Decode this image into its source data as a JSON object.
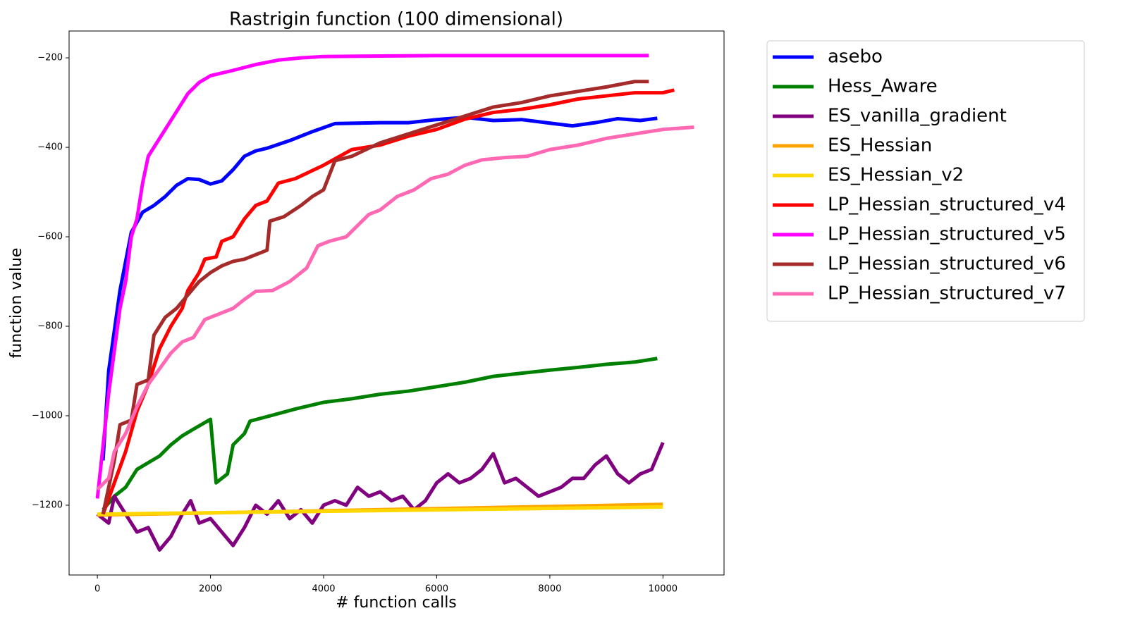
{
  "chart_data": {
    "type": "line",
    "title": "Rastrigin function (100 dimensional)",
    "x_label": "# function calls",
    "y_label": "function value",
    "xlim": [
      -500,
      11080
    ],
    "ylim": [
      -1356,
      -140
    ],
    "xticks": [
      0,
      2000,
      4000,
      6000,
      8000,
      10000
    ],
    "yticks": [
      {
        "value": -1200,
        "label": "−1200"
      },
      {
        "value": -1000,
        "label": "−1000"
      },
      {
        "value": -800,
        "label": "−800"
      },
      {
        "value": -600,
        "label": "−600"
      },
      {
        "value": -400,
        "label": "−400"
      },
      {
        "value": -200,
        "label": "−200"
      }
    ],
    "grid": false,
    "series": [
      {
        "name": "asebo",
        "color": "#0000ff",
        "x": [
          100,
          200,
          400,
          600,
          800,
          1000,
          1200,
          1400,
          1600,
          1800,
          2000,
          2200,
          2400,
          2600,
          2800,
          3000,
          3400,
          3800,
          4200,
          4600,
          5000,
          5500,
          6000,
          6500,
          7000,
          7500,
          8000,
          8400,
          8800,
          9200,
          9600,
          9900
        ],
        "values": [
          -1100,
          -900,
          -720,
          -590,
          -545,
          -530,
          -510,
          -485,
          -470,
          -472,
          -482,
          -475,
          -450,
          -420,
          -408,
          -402,
          -385,
          -365,
          -347,
          -346,
          -345,
          -345,
          -338,
          -333,
          -340,
          -338,
          -346,
          -352,
          -345,
          -336,
          -340,
          -335
        ]
      },
      {
        "name": "Hess_Aware",
        "color": "#008000",
        "x": [
          100,
          300,
          500,
          700,
          900,
          1100,
          1300,
          1500,
          1700,
          2000,
          2100,
          2300,
          2400,
          2600,
          2700,
          3000,
          3500,
          4000,
          4500,
          5000,
          5500,
          6000,
          6500,
          7000,
          7500,
          8000,
          8500,
          9000,
          9500,
          9900
        ],
        "values": [
          -1210,
          -1180,
          -1160,
          -1120,
          -1105,
          -1090,
          -1065,
          -1045,
          -1030,
          -1008,
          -1150,
          -1130,
          -1065,
          -1040,
          -1012,
          -1002,
          -985,
          -970,
          -962,
          -952,
          -945,
          -935,
          -925,
          -912,
          -905,
          -898,
          -892,
          -885,
          -880,
          -872
        ]
      },
      {
        "name": "ES_vanilla_gradient",
        "color": "#800080",
        "x": [
          0,
          200,
          300,
          500,
          700,
          900,
          1100,
          1300,
          1500,
          1650,
          1800,
          2000,
          2200,
          2400,
          2600,
          2800,
          3000,
          3200,
          3400,
          3600,
          3800,
          4000,
          4200,
          4400,
          4600,
          4800,
          5000,
          5200,
          5400,
          5600,
          5800,
          6000,
          6200,
          6400,
          6600,
          6800,
          7000,
          7200,
          7400,
          7600,
          7800,
          8000,
          8200,
          8400,
          8600,
          8800,
          9000,
          9200,
          9400,
          9600,
          9800,
          10000
        ],
        "values": [
          -1220,
          -1240,
          -1180,
          -1220,
          -1260,
          -1250,
          -1300,
          -1270,
          -1220,
          -1190,
          -1240,
          -1230,
          -1260,
          -1290,
          -1250,
          -1200,
          -1220,
          -1190,
          -1230,
          -1210,
          -1240,
          -1200,
          -1190,
          -1200,
          -1160,
          -1180,
          -1170,
          -1190,
          -1180,
          -1210,
          -1190,
          -1150,
          -1130,
          -1150,
          -1140,
          -1120,
          -1085,
          -1150,
          -1140,
          -1160,
          -1180,
          -1170,
          -1160,
          -1140,
          -1140,
          -1110,
          -1090,
          -1130,
          -1150,
          -1130,
          -1120,
          -1060
        ]
      },
      {
        "name": "ES_Hessian",
        "color": "#ffa500",
        "x": [
          0,
          10000
        ],
        "values": [
          -1222,
          -1198
        ]
      },
      {
        "name": "ES_Hessian_v2",
        "color": "#ffd700",
        "x": [
          0,
          10000
        ],
        "values": [
          -1220,
          -1204
        ]
      },
      {
        "name": "LP_Hessian_structured_v4",
        "color": "#ff0000",
        "x": [
          100,
          300,
          500,
          700,
          900,
          1100,
          1300,
          1500,
          1600,
          1800,
          1900,
          2100,
          2200,
          2400,
          2600,
          2800,
          3000,
          3200,
          3500,
          4000,
          4500,
          5000,
          5500,
          6000,
          6500,
          7000,
          7500,
          8000,
          8500,
          9000,
          9500,
          10000,
          10200
        ],
        "values": [
          -1220,
          -1150,
          -1080,
          -990,
          -930,
          -850,
          -800,
          -760,
          -720,
          -680,
          -650,
          -645,
          -610,
          -600,
          -560,
          -530,
          -520,
          -480,
          -470,
          -440,
          -405,
          -395,
          -375,
          -360,
          -337,
          -322,
          -315,
          -305,
          -292,
          -285,
          -278,
          -278,
          -272
        ]
      },
      {
        "name": "LP_Hessian_structured_v5",
        "color": "#ff00ff",
        "x": [
          0,
          200,
          400,
          500,
          600,
          700,
          800,
          900,
          1000,
          1200,
          1400,
          1600,
          1800,
          2000,
          2400,
          2800,
          3200,
          3600,
          4000,
          5000,
          6000,
          7000,
          8000,
          9000,
          9750
        ],
        "values": [
          -1185,
          -950,
          -760,
          -700,
          -600,
          -560,
          -480,
          -420,
          -400,
          -360,
          -320,
          -280,
          -255,
          -240,
          -228,
          -215,
          -205,
          -200,
          -197,
          -196,
          -195,
          -195,
          -195,
          -195,
          -195
        ]
      },
      {
        "name": "LP_Hessian_structured_v6",
        "color": "#a52a2a",
        "x": [
          100,
          300,
          400,
          600,
          700,
          900,
          1000,
          1200,
          1400,
          1600,
          1800,
          2000,
          2200,
          2400,
          2600,
          2800,
          3000,
          3050,
          3300,
          3600,
          3800,
          4000,
          4200,
          4500,
          5000,
          5500,
          6000,
          6500,
          7000,
          7500,
          8000,
          8500,
          9000,
          9500,
          9750
        ],
        "values": [
          -1220,
          -1100,
          -1020,
          -1010,
          -930,
          -920,
          -820,
          -780,
          -760,
          -730,
          -700,
          -680,
          -665,
          -655,
          -650,
          -640,
          -630,
          -565,
          -555,
          -530,
          -510,
          -495,
          -430,
          -420,
          -390,
          -370,
          -350,
          -330,
          -310,
          -300,
          -285,
          -275,
          -265,
          -253,
          -253
        ]
      },
      {
        "name": "LP_Hessian_structured_v7",
        "color": "#ff69b4",
        "x": [
          0,
          200,
          300,
          500,
          700,
          900,
          1100,
          1300,
          1500,
          1700,
          1900,
          2100,
          2400,
          2600,
          2800,
          3100,
          3400,
          3700,
          3900,
          4100,
          4400,
          4600,
          4800,
          5000,
          5300,
          5600,
          5900,
          6200,
          6500,
          6800,
          7200,
          7600,
          8000,
          8500,
          9000,
          9500,
          10000,
          10550
        ],
        "values": [
          -1165,
          -1140,
          -1080,
          -1040,
          -980,
          -930,
          -895,
          -860,
          -835,
          -825,
          -785,
          -775,
          -760,
          -740,
          -722,
          -720,
          -700,
          -670,
          -620,
          -610,
          -600,
          -575,
          -550,
          -540,
          -510,
          -495,
          -470,
          -460,
          -440,
          -428,
          -423,
          -420,
          -405,
          -395,
          -380,
          -370,
          -360,
          -355
        ]
      }
    ]
  }
}
